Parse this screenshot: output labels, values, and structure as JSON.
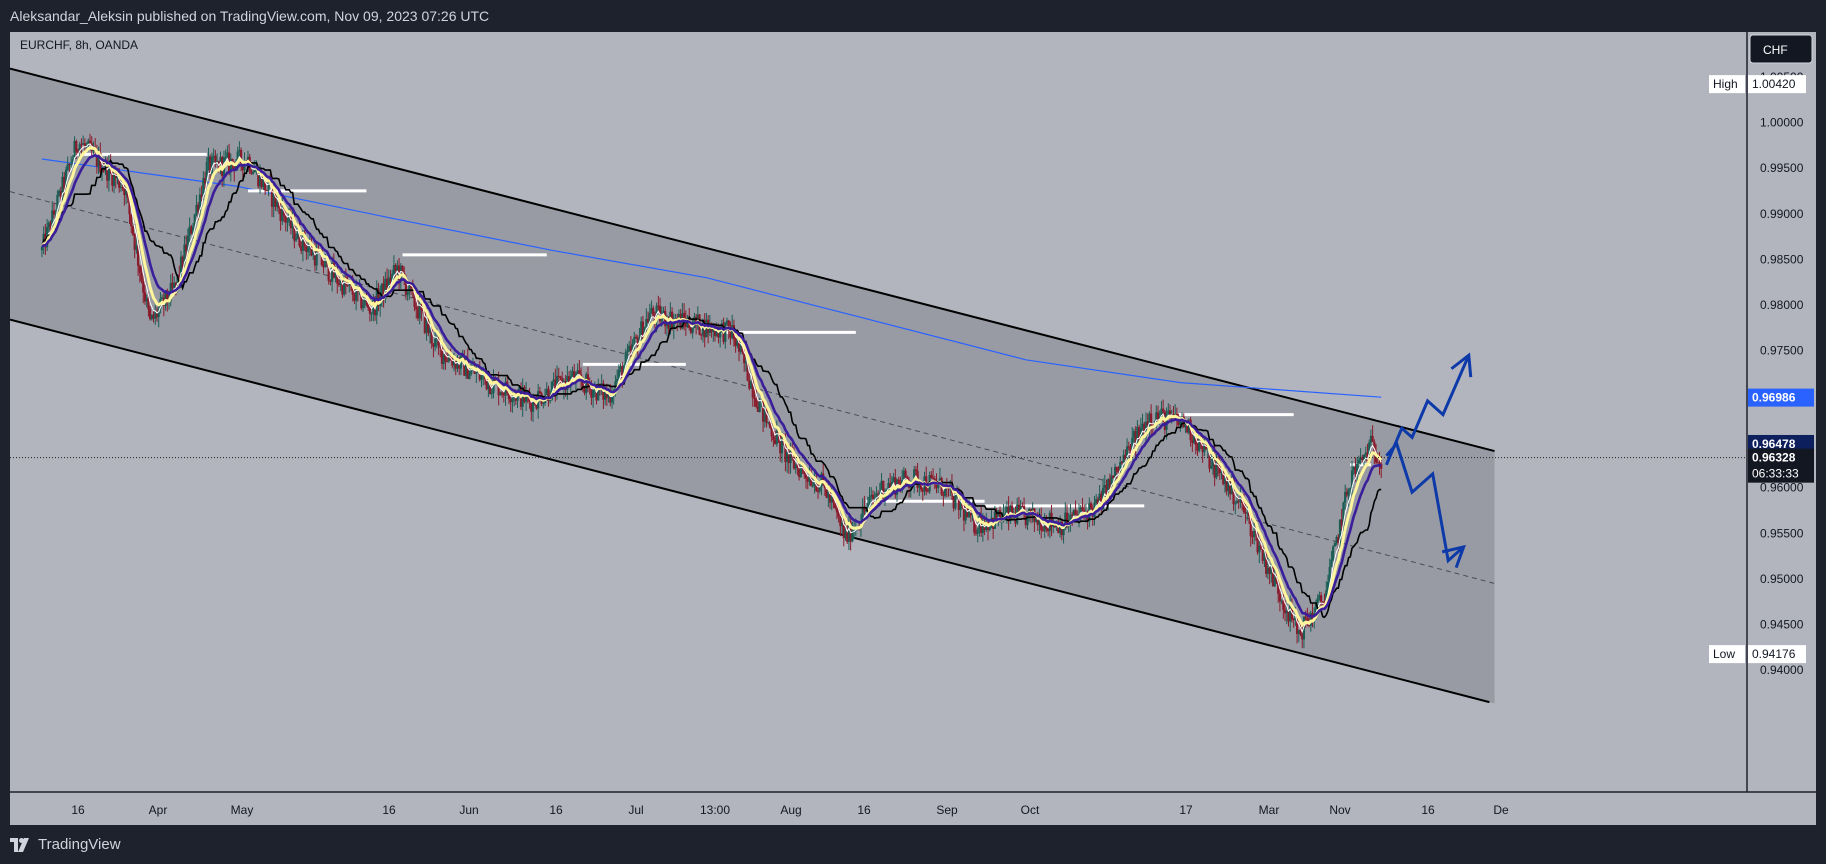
{
  "publisher_line": "Aleksandar_Aleksin published on TradingView.com, Nov 09, 2023 07:26 UTC",
  "symbol_line": "EURCHF, 8h, OANDA",
  "brand": "TradingView",
  "currency_button": "CHF",
  "colors": {
    "background": "#1e222d",
    "chart_bg": "#b2b5be",
    "channel_fill": "#9598a1",
    "bull_candle": "#1b5e55",
    "bear_candle": "#8b1a2b",
    "ma_yellow": "#fff59d",
    "ma_purple": "#3b1f9a",
    "ma_black": "#000000",
    "ma_white": "#ffffff",
    "ma_blue_long": "#2962ff",
    "projection_arrow": "#0d3aa8",
    "price_label_blue": "#2962ff"
  },
  "chart_data": {
    "type": "candlestick",
    "title": "EURCHF, 8h, OANDA",
    "ylim": [
      0.9375,
      1.0075
    ],
    "y_ticks": [
      "1.00500",
      "1.00000",
      "0.99500",
      "0.99000",
      "0.98500",
      "0.98000",
      "0.97500",
      "0.97000",
      "0.96500",
      "0.96000",
      "0.95500",
      "0.95000",
      "0.94500",
      "0.94000"
    ],
    "x_ticks": [
      "Mar",
      "16",
      "Apr",
      "May",
      "16",
      "Jun",
      "16",
      "Jul",
      "13:00",
      "Aug",
      "16",
      "Sep",
      "Oct",
      "17",
      "Nov",
      "16",
      "De"
    ],
    "price_labels": {
      "high": {
        "label": "High",
        "value": "1.00420"
      },
      "low": {
        "label": "Low",
        "value": "0.94176"
      },
      "ma_long": {
        "value": "0.96986"
      },
      "ma_short": {
        "value": "0.96478"
      },
      "last": {
        "value": "0.96328"
      },
      "countdown": "06:33:33"
    },
    "anchors": [
      {
        "date": "Feb 22",
        "value": 0.986
      },
      {
        "date": "Mar 1",
        "value": 0.998
      },
      {
        "date": "Mar 10",
        "value": 0.993
      },
      {
        "date": "Mar 15",
        "value": 0.978
      },
      {
        "date": "Mar 20",
        "value": 0.982
      },
      {
        "date": "Mar 26",
        "value": 0.995
      },
      {
        "date": "Apr 3",
        "value": 0.996
      },
      {
        "date": "Apr 12",
        "value": 0.988
      },
      {
        "date": "Apr 20",
        "value": 0.983
      },
      {
        "date": "Apr 27",
        "value": 0.9795
      },
      {
        "date": "May 2",
        "value": 0.984
      },
      {
        "date": "May 10",
        "value": 0.975
      },
      {
        "date": "May 20",
        "value": 0.9715
      },
      {
        "date": "May 28",
        "value": 0.9695
      },
      {
        "date": "Jun 5",
        "value": 0.972
      },
      {
        "date": "Jun 12",
        "value": 0.97
      },
      {
        "date": "Jun 20",
        "value": 0.979
      },
      {
        "date": "Jun 28",
        "value": 0.978
      },
      {
        "date": "Jul 6",
        "value": 0.977
      },
      {
        "date": "Jul 12",
        "value": 0.968
      },
      {
        "date": "Jul 17",
        "value": 0.963
      },
      {
        "date": "Jul 24",
        "value": 0.96
      },
      {
        "date": "Jul 28",
        "value": 0.9545
      },
      {
        "date": "Aug 4",
        "value": 0.96
      },
      {
        "date": "Aug 10",
        "value": 0.961
      },
      {
        "date": "Aug 16",
        "value": 0.96
      },
      {
        "date": "Aug 22",
        "value": 0.956
      },
      {
        "date": "Aug 30",
        "value": 0.957
      },
      {
        "date": "Sep 8",
        "value": 0.956
      },
      {
        "date": "Sep 15",
        "value": 0.958
      },
      {
        "date": "Sep 20",
        "value": 0.963
      },
      {
        "date": "Sep 25",
        "value": 0.968
      },
      {
        "date": "Oct 2",
        "value": 0.967
      },
      {
        "date": "Oct 8",
        "value": 0.962
      },
      {
        "date": "Oct 13",
        "value": 0.958
      },
      {
        "date": "Oct 19",
        "value": 0.95
      },
      {
        "date": "Oct 24",
        "value": 0.944
      },
      {
        "date": "Oct 29",
        "value": 0.948
      },
      {
        "date": "Nov 3",
        "value": 0.961
      },
      {
        "date": "Nov 7",
        "value": 0.9645
      },
      {
        "date": "Nov 9",
        "value": 0.9633
      }
    ],
    "moving_average_long": [
      {
        "date": "Feb 22",
        "value": 0.996
      },
      {
        "date": "Apr 1",
        "value": 0.993
      },
      {
        "date": "May 1",
        "value": 0.9895
      },
      {
        "date": "Jun 1",
        "value": 0.986
      },
      {
        "date": "Jul 1",
        "value": 0.983
      },
      {
        "date": "Aug 1",
        "value": 0.9785
      },
      {
        "date": "Sep 1",
        "value": 0.974
      },
      {
        "date": "Oct 1",
        "value": 0.9715
      },
      {
        "date": "Nov 9",
        "value": 0.9699
      }
    ],
    "channel": {
      "upper": [
        {
          "date": "Feb 22",
          "value": 1.005
        },
        {
          "date": "Dec 1",
          "value": 0.964
        }
      ],
      "lower": [
        {
          "date": "Feb 22",
          "value": 0.9775
        },
        {
          "date": "Nov 30",
          "value": 0.9365
        }
      ],
      "mid_dashed": [
        {
          "date": "Feb 22",
          "value": 0.9915
        },
        {
          "date": "Dec 1",
          "value": 0.9495
        }
      ]
    },
    "projection_up": [
      {
        "date": "Nov 10",
        "value": 0.9625
      },
      {
        "date": "Nov 13",
        "value": 0.9665
      },
      {
        "date": "Nov 15",
        "value": 0.9655
      },
      {
        "date": "Nov 18",
        "value": 0.9695
      },
      {
        "date": "Nov 21",
        "value": 0.968
      },
      {
        "date": "Nov 26",
        "value": 0.9745
      }
    ],
    "projection_down": [
      {
        "date": "Nov 10",
        "value": 0.9635
      },
      {
        "date": "Nov 12",
        "value": 0.9648
      },
      {
        "date": "Nov 15",
        "value": 0.9595
      },
      {
        "date": "Nov 19",
        "value": 0.9615
      },
      {
        "date": "Nov 22",
        "value": 0.952
      },
      {
        "date": "Nov 25",
        "value": 0.9535
      }
    ],
    "resistance_levels": [
      {
        "from": "Feb 28",
        "to": "Mar 26",
        "value": 0.9965
      },
      {
        "from": "Apr 3",
        "to": "Apr 26",
        "value": 0.9925
      },
      {
        "from": "May 3",
        "to": "May 31",
        "value": 0.9855
      },
      {
        "from": "Jun 7",
        "to": "Jun 27",
        "value": 0.9735
      },
      {
        "from": "Jul 3",
        "to": "Jul 30",
        "value": 0.977
      },
      {
        "from": "Aug 1",
        "to": "Aug 24",
        "value": 0.9585
      },
      {
        "from": "Aug 24",
        "to": "Sep 24",
        "value": 0.958
      },
      {
        "from": "Sep 29",
        "to": "Oct 23",
        "value": 0.968
      },
      {
        "from": "Nov 3",
        "to": "Nov 7",
        "value": 0.9625
      }
    ]
  }
}
